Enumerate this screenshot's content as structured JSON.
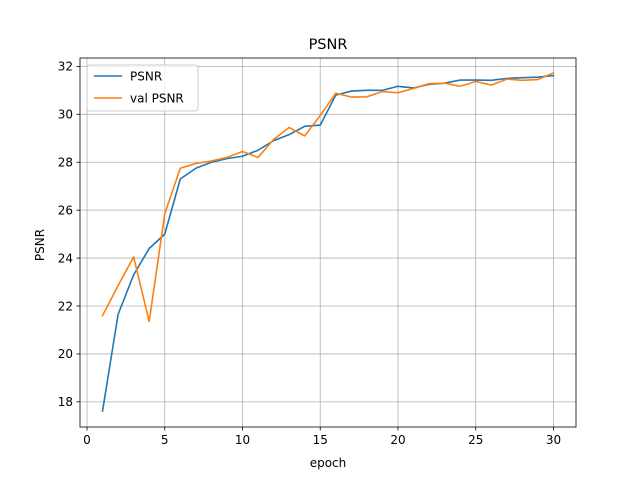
{
  "chart_data": {
    "type": "line",
    "title": "PSNR",
    "xlabel": "epoch",
    "ylabel": "PSNR",
    "xlim": [
      -0.45,
      31.45
    ],
    "ylim": [
      16.95,
      32.35
    ],
    "xticks": [
      0,
      5,
      10,
      15,
      20,
      25,
      30
    ],
    "yticks": [
      18,
      20,
      22,
      24,
      26,
      28,
      30,
      32
    ],
    "grid": true,
    "legend_position": "upper-left",
    "x": [
      1,
      2,
      3,
      4,
      5,
      6,
      7,
      8,
      9,
      10,
      11,
      12,
      13,
      14,
      15,
      16,
      17,
      18,
      19,
      20,
      21,
      22,
      23,
      24,
      25,
      26,
      27,
      28,
      29,
      30
    ],
    "series": [
      {
        "name": "PSNR",
        "color": "#1f77b4",
        "values": [
          17.62,
          21.65,
          23.3,
          24.4,
          25.0,
          27.3,
          27.75,
          28.0,
          28.15,
          28.25,
          28.5,
          28.9,
          29.15,
          29.5,
          29.55,
          30.8,
          30.97,
          31.0,
          31.0,
          31.17,
          31.1,
          31.25,
          31.3,
          31.43,
          31.43,
          31.42,
          31.5,
          31.53,
          31.55,
          31.62
        ]
      },
      {
        "name": "val PSNR",
        "color": "#ff7f0e",
        "values": [
          21.6,
          22.85,
          24.05,
          21.35,
          25.85,
          27.75,
          27.95,
          28.05,
          28.2,
          28.45,
          28.2,
          28.95,
          29.45,
          29.1,
          29.95,
          30.88,
          30.72,
          30.73,
          30.95,
          30.9,
          31.08,
          31.28,
          31.3,
          31.17,
          31.37,
          31.22,
          31.47,
          31.42,
          31.45,
          31.73
        ]
      }
    ]
  }
}
